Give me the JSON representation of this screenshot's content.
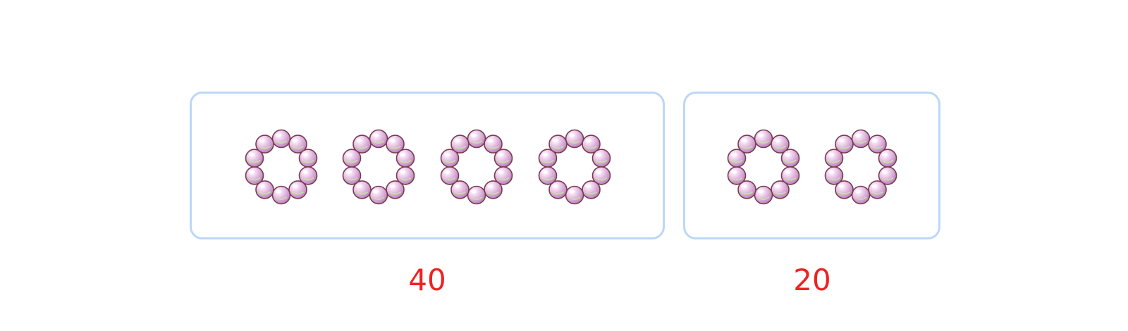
{
  "diagram": {
    "groups": [
      {
        "total_label": "40",
        "bracelet_count": 4,
        "beads_per_bracelet": 10
      },
      {
        "total_label": "20",
        "bracelet_count": 2,
        "beads_per_bracelet": 10
      }
    ],
    "icons": {
      "item": "bead-bracelet-icon"
    },
    "colors": {
      "box_border": "#bcd7f7",
      "label_text": "#ee2222",
      "bead_fill": "#d9a8d6",
      "bead_outline": "#7a3a50",
      "bead_highlight": "#c6e6a0"
    }
  }
}
